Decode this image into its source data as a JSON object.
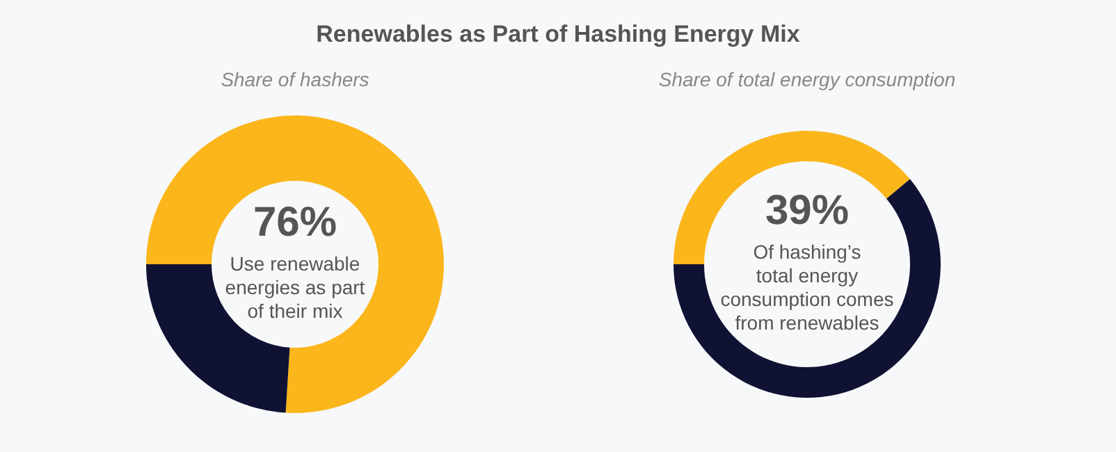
{
  "chart_data": [
    {
      "type": "donut",
      "title": "Renewables as Part of Hashing Energy Mix",
      "subtitle": "Share of hashers",
      "categories": [
        null,
        null
      ],
      "values": [
        76,
        24
      ],
      "colors": [
        "#fbb61b",
        "#0f1232"
      ],
      "value_labels": [
        "76%",
        null
      ],
      "annotations": [
        "Use renewable energies as part of their mix"
      ]
    },
    {
      "type": "donut",
      "subtitle": "Share of total energy consumption",
      "categories": [
        null,
        null
      ],
      "values": [
        39,
        61
      ],
      "colors": [
        "#fbb61b",
        "#0f1232"
      ],
      "value_labels": [
        "39%",
        null
      ],
      "annotations": [
        "Of hashing’s total energy consumption comes from renewables"
      ]
    }
  ]
}
